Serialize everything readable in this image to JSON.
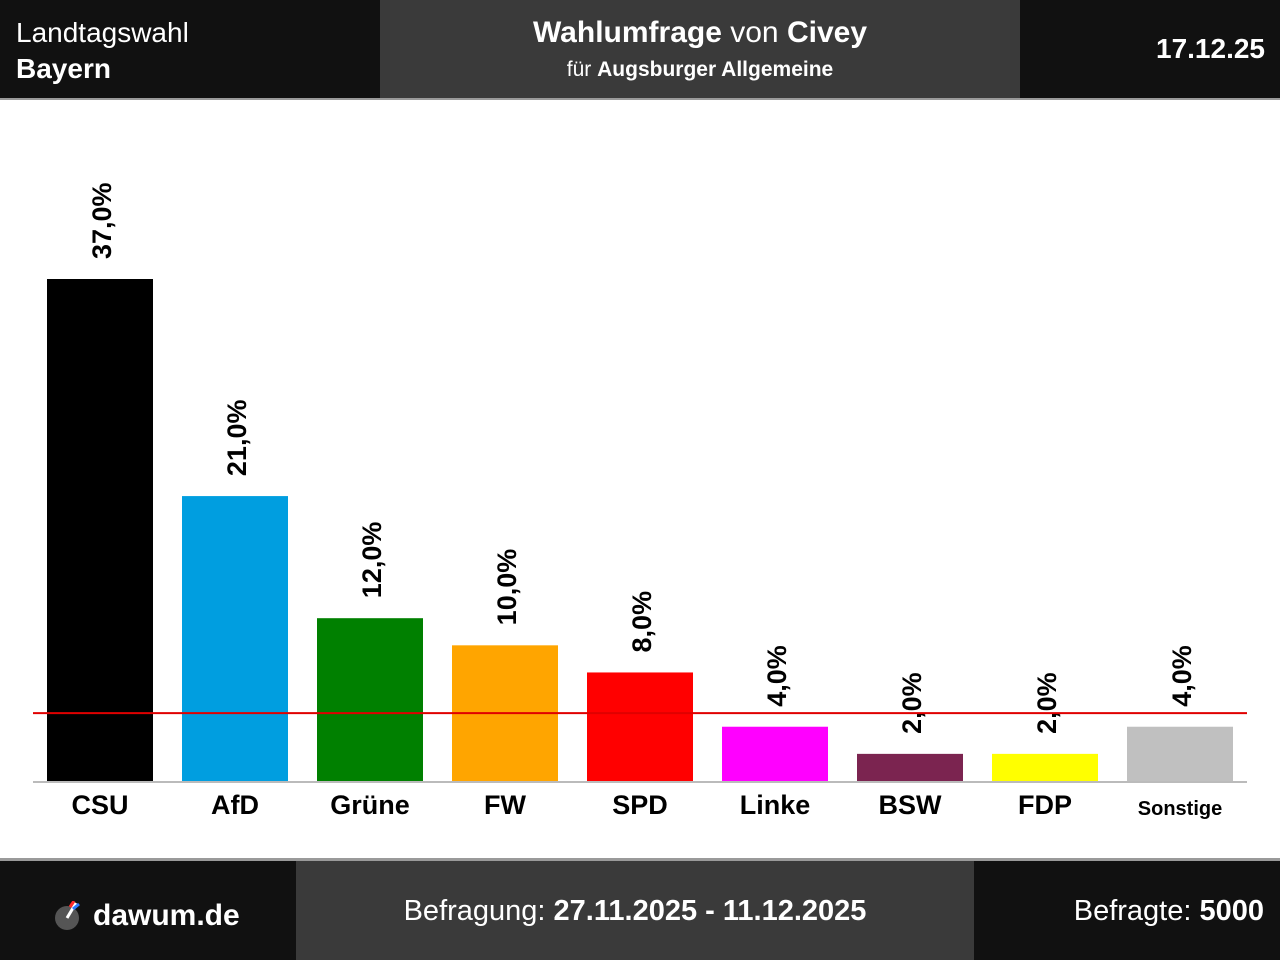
{
  "header": {
    "election_type": "Landtagswahl",
    "state": "Bayern",
    "poll_label": "Wahlumfrage",
    "poll_von": "von",
    "institute": "Civey",
    "client_prefix": "für",
    "client": "Augsburger Allgemeine",
    "date": "17.12.25"
  },
  "footer": {
    "site": "dawum.de",
    "survey_label": "Befragung:",
    "survey_period": "27.11.2025 - 11.12.2025",
    "respondents_label": "Befragte:",
    "respondents": "5000"
  },
  "colors": {
    "header_bg": "#111111",
    "header_center_bg": "#3a3a3a",
    "threshold_line": "#e00000"
  },
  "chart_data": {
    "type": "bar",
    "title": "",
    "xlabel": "",
    "ylabel": "",
    "categories": [
      "CSU",
      "AfD",
      "Grüne",
      "FW",
      "SPD",
      "Linke",
      "BSW",
      "FDP",
      "Sonstige"
    ],
    "values": [
      37.0,
      21.0,
      12.0,
      10.0,
      8.0,
      4.0,
      2.0,
      2.0,
      4.0
    ],
    "value_labels": [
      "37,0%",
      "21,0%",
      "12,0%",
      "10,0%",
      "8,0%",
      "4,0%",
      "2,0%",
      "2,0%",
      "4,0%"
    ],
    "colors": [
      "#000000",
      "#009ee0",
      "#008000",
      "#ffa500",
      "#ff0000",
      "#ff00ff",
      "#7b2450",
      "#ffff00",
      "#c0c0c0"
    ],
    "threshold": 5.0,
    "ylim": [
      0,
      37
    ],
    "grid": false
  }
}
